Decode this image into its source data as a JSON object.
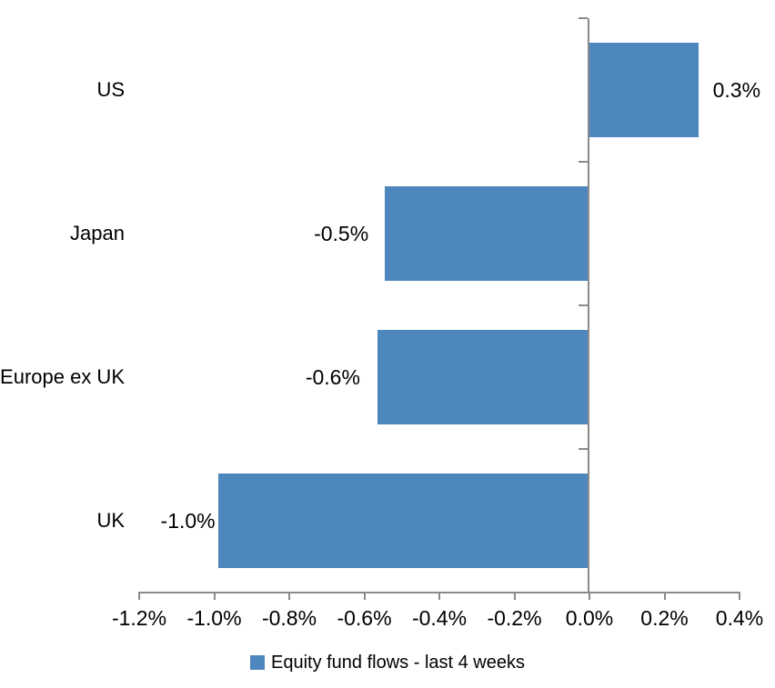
{
  "chart_data": {
    "type": "bar",
    "orientation": "horizontal",
    "title": "",
    "categories": [
      "US",
      "Japan",
      "Europe ex UK",
      "UK"
    ],
    "values": [
      0.3,
      -0.5,
      -0.6,
      -1.0
    ],
    "plotted_values": [
      0.29,
      -0.545,
      -0.565,
      -0.99
    ],
    "data_labels": [
      "0.3%",
      "-0.5%",
      "-0.6%",
      "-1.0%"
    ],
    "x_ticks": [
      -1.2,
      -1.0,
      -0.8,
      -0.6,
      -0.4,
      -0.2,
      0.0,
      0.2,
      0.4
    ],
    "x_tick_labels": [
      "-1.2%",
      "-1.0%",
      "-0.8%",
      "-0.6%",
      "-0.4%",
      "-0.2%",
      "0.0%",
      "0.2%",
      "0.4%"
    ],
    "xlim": [
      -1.2,
      0.4
    ],
    "grid": false,
    "legend_position": "bottom",
    "legend": [
      {
        "label": "Equity fund flows - last 4 weeks",
        "color": "#4e87be"
      }
    ],
    "colors": {
      "bar": "#4e87be",
      "axis": "#8a8a8a",
      "text": "#000000",
      "background": "#ffffff"
    }
  }
}
